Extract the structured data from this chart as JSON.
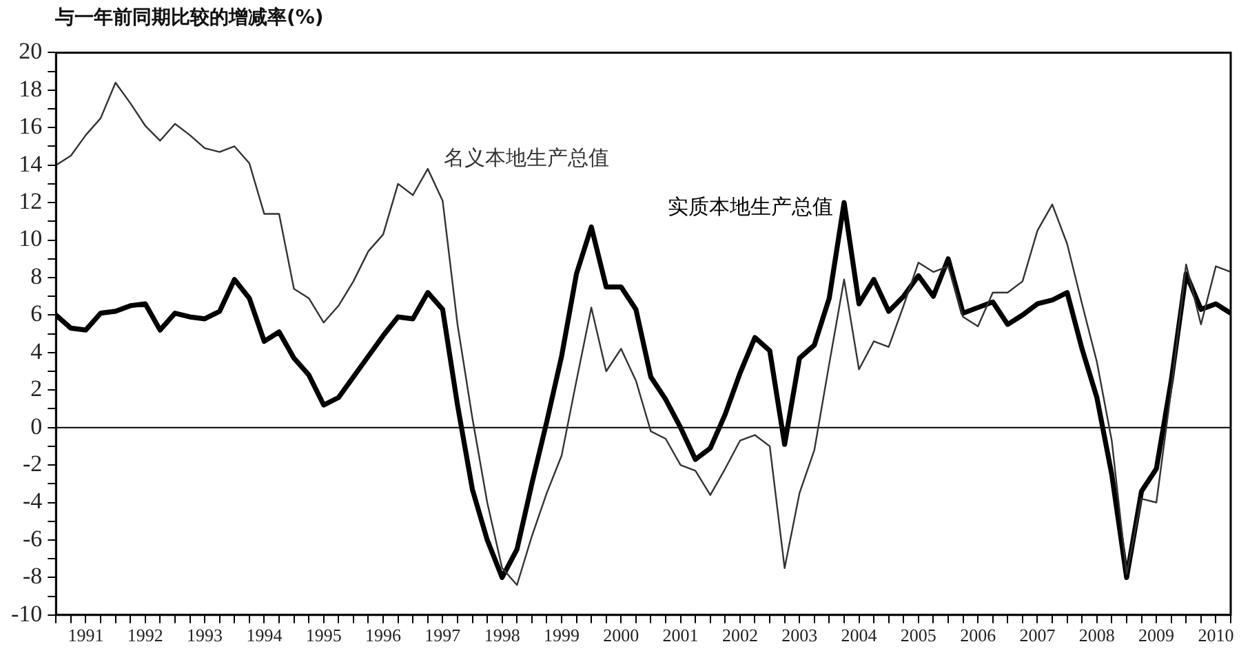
{
  "chart_data": {
    "type": "line",
    "ylabel": "与一年前同期比较的增减率(%)",
    "x": [
      1991,
      1991.25,
      1991.5,
      1991.75,
      1992,
      1992.25,
      1992.5,
      1992.75,
      1993,
      1993.25,
      1993.5,
      1993.75,
      1994,
      1994.25,
      1994.5,
      1994.75,
      1995,
      1995.25,
      1995.5,
      1995.75,
      1996,
      1996.25,
      1996.5,
      1996.75,
      1997,
      1997.25,
      1997.5,
      1997.75,
      1998,
      1998.25,
      1998.5,
      1998.75,
      1999,
      1999.25,
      1999.5,
      1999.75,
      2000,
      2000.25,
      2000.5,
      2000.75,
      2001,
      2001.25,
      2001.5,
      2001.75,
      2002,
      2002.25,
      2002.5,
      2002.75,
      2003,
      2003.25,
      2003.5,
      2003.75,
      2004,
      2004.25,
      2004.5,
      2004.75,
      2005,
      2005.25,
      2005.5,
      2005.75,
      2006,
      2006.25,
      2006.5,
      2006.75,
      2007,
      2007.25,
      2007.5,
      2007.75,
      2008,
      2008.25,
      2008.5,
      2008.75,
      2009,
      2009.25,
      2009.5,
      2009.75,
      2010,
      2010.25,
      2010.5,
      2010.75
    ],
    "series": [
      {
        "name": "名义本地生产总值",
        "color": "#333333",
        "values": [
          14.0,
          14.5,
          15.6,
          16.5,
          18.4,
          17.3,
          16.1,
          15.3,
          16.2,
          15.6,
          14.9,
          14.7,
          15.0,
          14.1,
          11.4,
          11.4,
          7.4,
          6.9,
          5.6,
          6.5,
          7.8,
          9.4,
          10.3,
          13.0,
          12.4,
          13.8,
          12.1,
          5.5,
          0.5,
          -4.0,
          -7.5,
          -8.4,
          -5.8,
          -3.5,
          -1.5,
          2.5,
          6.4,
          3.0,
          4.2,
          2.5,
          -0.2,
          -0.6,
          -2.0,
          -2.3,
          -3.6,
          -2.2,
          -0.7,
          -0.4,
          -1.0,
          -7.5,
          -3.5,
          -1.2,
          3.4,
          7.9,
          3.1,
          4.6,
          4.3,
          6.5,
          8.8,
          8.3,
          8.6,
          5.9,
          5.4,
          7.2,
          7.2,
          7.8,
          10.5,
          11.9,
          9.8,
          6.6,
          3.5,
          -0.7,
          -7.8,
          -3.8,
          -4.0,
          2.0,
          8.7,
          5.5,
          8.6,
          8.3
        ]
      },
      {
        "name": "实质本地生产总值",
        "color": "#000000",
        "values": [
          6.0,
          5.3,
          5.2,
          6.1,
          6.2,
          6.5,
          6.6,
          5.2,
          6.1,
          5.9,
          5.8,
          6.2,
          7.9,
          6.9,
          4.6,
          5.1,
          3.7,
          2.8,
          1.2,
          1.6,
          2.7,
          3.8,
          4.9,
          5.9,
          5.8,
          7.2,
          6.3,
          1.2,
          -3.3,
          -6.0,
          -8.0,
          -6.5,
          -3.0,
          0.3,
          3.8,
          8.2,
          10.7,
          7.5,
          7.5,
          6.3,
          2.7,
          1.5,
          0.0,
          -1.7,
          -1.1,
          0.7,
          2.9,
          4.8,
          4.1,
          -0.9,
          3.7,
          4.4,
          6.9,
          12.0,
          6.6,
          7.9,
          6.2,
          7.0,
          8.1,
          7.0,
          9.0,
          6.1,
          6.4,
          6.7,
          5.5,
          6.0,
          6.6,
          6.8,
          7.2,
          4.2,
          1.6,
          -2.5,
          -8.0,
          -3.4,
          -2.2,
          2.5,
          8.2,
          6.3,
          6.6,
          6.1
        ]
      }
    ],
    "xlim": [
      1991,
      2010.75
    ],
    "xticks": [
      {
        "value": 1991,
        "label": null
      },
      {
        "value": 1991.25,
        "label": null
      },
      {
        "value": 1991.5,
        "label": "1991"
      },
      {
        "value": 1991.75,
        "label": null
      },
      {
        "value": 1992,
        "label": null
      },
      {
        "value": 1992.25,
        "label": null
      },
      {
        "value": 1992.5,
        "label": "1992"
      },
      {
        "value": 1992.75,
        "label": null
      },
      {
        "value": 1993,
        "label": null
      },
      {
        "value": 1993.25,
        "label": null
      },
      {
        "value": 1993.5,
        "label": "1993"
      },
      {
        "value": 1993.75,
        "label": null
      },
      {
        "value": 1994,
        "label": null
      },
      {
        "value": 1994.25,
        "label": null
      },
      {
        "value": 1994.5,
        "label": "1994"
      },
      {
        "value": 1994.75,
        "label": null
      },
      {
        "value": 1995,
        "label": null
      },
      {
        "value": 1995.25,
        "label": null
      },
      {
        "value": 1995.5,
        "label": "1995"
      },
      {
        "value": 1995.75,
        "label": null
      },
      {
        "value": 1996,
        "label": null
      },
      {
        "value": 1996.25,
        "label": null
      },
      {
        "value": 1996.5,
        "label": "1996"
      },
      {
        "value": 1996.75,
        "label": null
      },
      {
        "value": 1997,
        "label": null
      },
      {
        "value": 1997.25,
        "label": null
      },
      {
        "value": 1997.5,
        "label": "1997"
      },
      {
        "value": 1997.75,
        "label": null
      },
      {
        "value": 1998,
        "label": null
      },
      {
        "value": 1998.25,
        "label": null
      },
      {
        "value": 1998.5,
        "label": "1998"
      },
      {
        "value": 1998.75,
        "label": null
      },
      {
        "value": 1999,
        "label": null
      },
      {
        "value": 1999.25,
        "label": null
      },
      {
        "value": 1999.5,
        "label": "1999"
      },
      {
        "value": 1999.75,
        "label": null
      },
      {
        "value": 2000,
        "label": null
      },
      {
        "value": 2000.25,
        "label": null
      },
      {
        "value": 2000.5,
        "label": "2000"
      },
      {
        "value": 2000.75,
        "label": null
      },
      {
        "value": 2001,
        "label": null
      },
      {
        "value": 2001.25,
        "label": null
      },
      {
        "value": 2001.5,
        "label": "2001"
      },
      {
        "value": 2001.75,
        "label": null
      },
      {
        "value": 2002,
        "label": null
      },
      {
        "value": 2002.25,
        "label": null
      },
      {
        "value": 2002.5,
        "label": "2002"
      },
      {
        "value": 2002.75,
        "label": null
      },
      {
        "value": 2003,
        "label": null
      },
      {
        "value": 2003.25,
        "label": null
      },
      {
        "value": 2003.5,
        "label": "2003"
      },
      {
        "value": 2003.75,
        "label": null
      },
      {
        "value": 2004,
        "label": null
      },
      {
        "value": 2004.25,
        "label": null
      },
      {
        "value": 2004.5,
        "label": "2004"
      },
      {
        "value": 2004.75,
        "label": null
      },
      {
        "value": 2005,
        "label": null
      },
      {
        "value": 2005.25,
        "label": null
      },
      {
        "value": 2005.5,
        "label": "2005"
      },
      {
        "value": 2005.75,
        "label": null
      },
      {
        "value": 2006,
        "label": null
      },
      {
        "value": 2006.25,
        "label": null
      },
      {
        "value": 2006.5,
        "label": "2006"
      },
      {
        "value": 2006.75,
        "label": null
      },
      {
        "value": 2007,
        "label": null
      },
      {
        "value": 2007.25,
        "label": null
      },
      {
        "value": 2007.5,
        "label": "2007"
      },
      {
        "value": 2007.75,
        "label": null
      },
      {
        "value": 2008,
        "label": null
      },
      {
        "value": 2008.25,
        "label": null
      },
      {
        "value": 2008.5,
        "label": "2008"
      },
      {
        "value": 2008.75,
        "label": null
      },
      {
        "value": 2009,
        "label": null
      },
      {
        "value": 2009.25,
        "label": null
      },
      {
        "value": 2009.5,
        "label": "2009"
      },
      {
        "value": 2009.75,
        "label": null
      },
      {
        "value": 2010,
        "label": null
      },
      {
        "value": 2010.25,
        "label": null
      },
      {
        "value": 2010.5,
        "label": "2010"
      },
      {
        "value": 2010.75,
        "label": null
      }
    ],
    "ylim": [
      -10,
      20
    ],
    "yticks": [
      -10,
      {
        "value": -9,
        "label": null
      },
      -8,
      {
        "value": -7,
        "label": null
      },
      -6,
      {
        "value": -5,
        "label": null
      },
      -4,
      {
        "value": -3,
        "label": null
      },
      -2,
      {
        "value": -1,
        "label": null
      },
      0,
      {
        "value": 1,
        "label": null
      },
      2,
      {
        "value": 3,
        "label": null
      },
      4,
      {
        "value": 5,
        "label": null
      },
      6,
      {
        "value": 7,
        "label": null
      },
      8,
      {
        "value": 9,
        "label": null
      },
      10,
      {
        "value": 11,
        "label": null
      },
      12,
      {
        "value": 13,
        "label": null
      },
      14,
      {
        "value": 15,
        "label": null
      },
      16,
      {
        "value": 17,
        "label": null
      },
      18,
      {
        "value": 19,
        "label": null
      },
      20
    ],
    "ref_lines": [
      {
        "axis": "y",
        "value": 0,
        "color": "#000000"
      }
    ],
    "grid": false,
    "legend": false,
    "marker": "none",
    "line_style": "solid"
  }
}
